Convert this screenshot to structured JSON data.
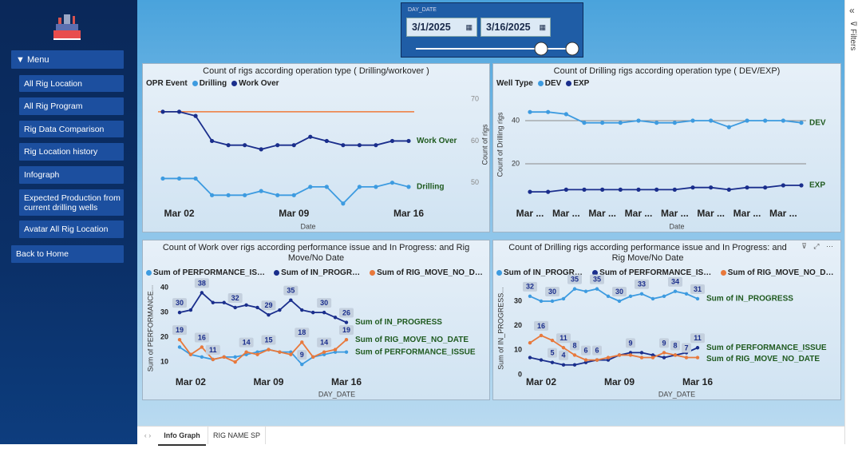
{
  "sidebar": {
    "menu": "Menu",
    "items": [
      "All Rig Location",
      "All Rig Program",
      "Rig Data Comparison",
      "Rig Location history",
      "Infograph",
      "Expected Production from current drilling wells",
      "Avatar All Rig Location"
    ],
    "back": "Back to Home"
  },
  "filter": {
    "label": "DAY_DATE",
    "start": "3/1/2025",
    "end": "3/16/2025"
  },
  "filters_pane": {
    "label": "Filters"
  },
  "tabs": [
    "Info Graph",
    "RIG NAME SP"
  ],
  "chart_data": [
    {
      "type": "line",
      "title": "Count of rigs according operation type ( Drilling/workover )",
      "legend_title": "OPR Event",
      "categories": [
        null,
        "Mar 02",
        null,
        null,
        null,
        null,
        null,
        null,
        "Mar 09",
        null,
        null,
        null,
        null,
        null,
        null,
        "Mar 16"
      ],
      "x_label": "Date",
      "y_label": "Count of rigs",
      "ylim": [
        44,
        71
      ],
      "yticks": [
        50,
        60,
        70
      ],
      "grid": false,
      "reference_line": {
        "value": 67,
        "color": "#ef7a3a"
      },
      "series": [
        {
          "name": "Drilling",
          "color": "#3d9be0",
          "values": [
            51,
            51,
            51,
            47,
            47,
            47,
            48,
            47,
            47,
            49,
            49,
            45,
            49,
            49,
            50,
            49
          ]
        },
        {
          "name": "Work Over",
          "color": "#1a2e8c",
          "values": [
            67,
            67,
            66,
            60,
            59,
            59,
            58,
            59,
            59,
            61,
            60,
            59,
            59,
            59,
            60,
            60
          ]
        }
      ]
    },
    {
      "type": "line",
      "title": "Count of Drilling rigs according operation type ( DEV/EXP)",
      "legend_title": "Well Type",
      "categories": [
        "Mar ...",
        null,
        "Mar ...",
        null,
        "Mar ...",
        null,
        "Mar ...",
        null,
        "Mar ...",
        null,
        "Mar ...",
        null,
        "Mar ...",
        null,
        "Mar ...",
        null
      ],
      "x_label": "Date",
      "y_label": "Count of Drilling rigs",
      "ylim": [
        0,
        50
      ],
      "yticks": [
        20,
        40
      ],
      "grid": true,
      "series": [
        {
          "name": "DEV",
          "color": "#3d9be0",
          "values": [
            44,
            44,
            43,
            39,
            39,
            39,
            40,
            39,
            39,
            40,
            40,
            37,
            40,
            40,
            40,
            39
          ]
        },
        {
          "name": "EXP",
          "color": "#1a2e8c",
          "values": [
            7,
            7,
            8,
            8,
            8,
            8,
            8,
            8,
            8,
            9,
            9,
            8,
            9,
            9,
            10,
            10
          ]
        }
      ]
    },
    {
      "type": "line",
      "title": "Count of Work over rigs according performance issue and In Progress: and Rig Move/No Date",
      "categories": [
        null,
        "Mar 02",
        null,
        null,
        null,
        null,
        null,
        null,
        "Mar 09",
        null,
        null,
        null,
        null,
        null,
        null,
        "Mar 16"
      ],
      "x_label": "DAY_DATE",
      "y_label": "Sum of PERFORMANCE...",
      "ylim": [
        5,
        42
      ],
      "yticks": [
        10,
        20,
        30,
        40
      ],
      "grid": false,
      "series": [
        {
          "name": "Sum of PERFORMANCE_ISSUE",
          "color": "#3d9be0",
          "values": [
            16,
            13,
            12,
            11,
            12,
            12,
            13,
            14,
            15,
            14,
            14,
            9,
            12,
            13,
            14,
            14
          ],
          "value_labels": [
            null,
            null,
            null,
            "11",
            null,
            null,
            null,
            null,
            null,
            null,
            null,
            "9",
            null,
            null,
            null,
            null
          ]
        },
        {
          "name": "Sum of IN_PROGRESS",
          "color": "#1a2e8c",
          "values": [
            30,
            31,
            38,
            34,
            34,
            32,
            33,
            32,
            29,
            31,
            35,
            31,
            30,
            30,
            28,
            26
          ],
          "value_labels": [
            "30",
            null,
            "38",
            null,
            null,
            "32",
            null,
            null,
            "29",
            null,
            "35",
            null,
            null,
            "30",
            null,
            "26"
          ]
        },
        {
          "name": "Sum of RIG_MOVE_NO_DATE",
          "color": "#e8793c",
          "values": [
            19,
            13,
            16,
            11,
            12,
            10,
            14,
            13,
            15,
            14,
            13,
            18,
            12,
            14,
            15,
            19
          ],
          "value_labels": [
            "19",
            null,
            "16",
            null,
            null,
            null,
            "14",
            null,
            "15",
            null,
            null,
            "18",
            null,
            "14",
            null,
            "19"
          ]
        }
      ]
    },
    {
      "type": "line",
      "title": "Count of Drilling rigs according performance issue and In Progress: and Rig Move/No Date",
      "categories": [
        null,
        "Mar 02",
        null,
        null,
        null,
        null,
        null,
        null,
        "Mar 09",
        null,
        null,
        null,
        null,
        null,
        null,
        "Mar 16"
      ],
      "x_label": "DAY_DATE",
      "y_label": "Sum of IN_PROGRESS...",
      "ylim": [
        0,
        37
      ],
      "yticks": [
        0,
        10,
        20,
        30
      ],
      "grid": false,
      "series": [
        {
          "name": "Sum of IN_PROGRESS",
          "color": "#3d9be0",
          "values": [
            32,
            30,
            30,
            31,
            35,
            34,
            35,
            32,
            30,
            32,
            33,
            31,
            32,
            34,
            33,
            31
          ],
          "value_labels": [
            "32",
            null,
            "30",
            null,
            "35",
            null,
            "35",
            null,
            "30",
            null,
            "33",
            null,
            null,
            "34",
            null,
            "31"
          ]
        },
        {
          "name": "Sum of PERFORMANCE_ISSUE",
          "color": "#1a2e8c",
          "values": [
            7,
            6,
            5,
            4,
            4,
            5,
            6,
            6,
            8,
            9,
            9,
            8,
            7,
            8,
            9,
            11
          ],
          "value_labels": [
            null,
            null,
            "5",
            "4",
            null,
            null,
            null,
            null,
            null,
            "9",
            null,
            null,
            null,
            null,
            null,
            "11"
          ]
        },
        {
          "name": "Sum of RIG_MOVE_NO_DATE",
          "color": "#e8793c",
          "values": [
            13,
            16,
            14,
            11,
            8,
            6,
            6,
            7,
            8,
            8,
            7,
            7,
            9,
            8,
            7,
            7
          ],
          "value_labels": [
            null,
            "16",
            null,
            "11",
            "8",
            "6",
            "6",
            null,
            null,
            null,
            null,
            null,
            "9",
            "8",
            "7",
            null
          ]
        }
      ]
    }
  ]
}
